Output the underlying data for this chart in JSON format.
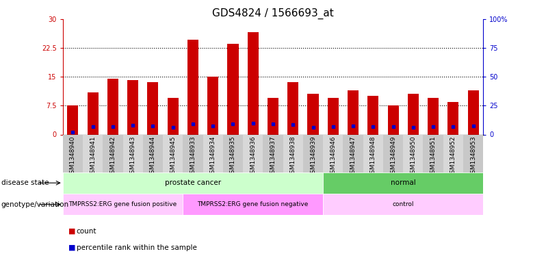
{
  "title": "GDS4824 / 1566693_at",
  "samples": [
    "GSM1348940",
    "GSM1348941",
    "GSM1348942",
    "GSM1348943",
    "GSM1348944",
    "GSM1348945",
    "GSM1348933",
    "GSM1348934",
    "GSM1348935",
    "GSM1348936",
    "GSM1348937",
    "GSM1348938",
    "GSM1348939",
    "GSM1348946",
    "GSM1348947",
    "GSM1348948",
    "GSM1348949",
    "GSM1348950",
    "GSM1348951",
    "GSM1348952",
    "GSM1348953"
  ],
  "counts": [
    7.5,
    11.0,
    14.5,
    14.2,
    13.5,
    9.5,
    24.5,
    15.0,
    23.5,
    26.5,
    9.5,
    13.5,
    10.5,
    9.5,
    11.5,
    10.0,
    7.5,
    10.5,
    9.5,
    8.5,
    11.5
  ],
  "percentile_ranks": [
    2.0,
    7.0,
    7.0,
    8.0,
    7.5,
    6.0,
    9.0,
    7.5,
    9.0,
    9.5,
    9.0,
    8.5,
    6.5,
    7.0,
    7.5,
    7.0,
    7.0,
    6.5,
    7.0,
    7.0,
    7.5
  ],
  "bar_color": "#cc0000",
  "marker_color": "#0000cc",
  "left_axis_color": "#cc0000",
  "right_axis_color": "#0000cc",
  "ylim_left": [
    0,
    30
  ],
  "ylim_right": [
    0,
    100
  ],
  "yticks_left": [
    0,
    7.5,
    15,
    22.5,
    30
  ],
  "ytick_labels_left": [
    "0",
    "7.5",
    "15",
    "22.5",
    "30"
  ],
  "yticks_right": [
    0,
    25,
    50,
    75,
    100
  ],
  "ytick_labels_right": [
    "0",
    "25",
    "50",
    "75",
    "100%"
  ],
  "hlines": [
    7.5,
    15,
    22.5
  ],
  "disease_state_groups": [
    {
      "label": "prostate cancer",
      "start": 0,
      "end": 13,
      "color": "#ccffcc"
    },
    {
      "label": "normal",
      "start": 13,
      "end": 21,
      "color": "#66cc66"
    }
  ],
  "genotype_groups": [
    {
      "label": "TMPRSS2:ERG gene fusion positive",
      "start": 0,
      "end": 6,
      "color": "#ffccff"
    },
    {
      "label": "TMPRSS2:ERG gene fusion negative",
      "start": 6,
      "end": 13,
      "color": "#ff99ff"
    },
    {
      "label": "control",
      "start": 13,
      "end": 21,
      "color": "#ffccff"
    }
  ],
  "legend_count_label": "count",
  "legend_percentile_label": "percentile rank within the sample",
  "bar_width": 0.55,
  "bg_color": "#ffffff",
  "grid_color": "#000000",
  "tick_fontsize": 7,
  "title_fontsize": 11,
  "annotation_label_ds": "disease state",
  "annotation_label_gv": "genotype/variation",
  "col_shade_even": "#c8c8c8",
  "col_shade_odd": "#d8d8d8"
}
